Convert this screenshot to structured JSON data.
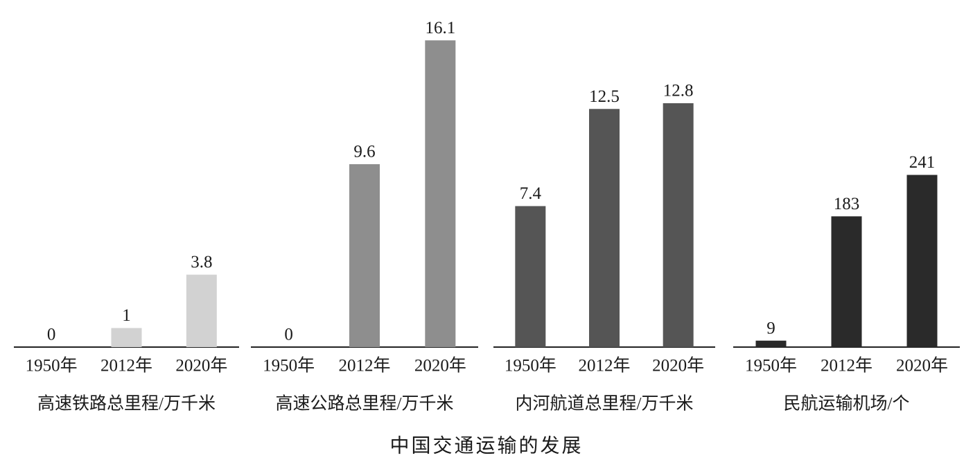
{
  "title": "中国交通运输的发展",
  "chart_data": [
    {
      "type": "bar",
      "title": "高速铁路总里程/万千米",
      "categories": [
        "1950年",
        "2012年",
        "2020年"
      ],
      "values": [
        0,
        1,
        3.8
      ],
      "color": "#d2d2d2",
      "ylim": [
        0,
        18
      ]
    },
    {
      "type": "bar",
      "title": "高速公路总里程/万千米",
      "categories": [
        "1950年",
        "2012年",
        "2020年"
      ],
      "values": [
        0,
        9.6,
        16.1
      ],
      "color": "#8e8e8e",
      "ylim": [
        0,
        18
      ]
    },
    {
      "type": "bar",
      "title": "内河航道总里程/万千米",
      "categories": [
        "1950年",
        "2012年",
        "2020年"
      ],
      "values": [
        7.4,
        12.5,
        12.8
      ],
      "color": "#555555",
      "ylim": [
        0,
        18
      ]
    },
    {
      "type": "bar",
      "title": "民航运输机场/个",
      "categories": [
        "1950年",
        "2012年",
        "2020年"
      ],
      "values": [
        9,
        183,
        241
      ],
      "color": "#2a2a2a",
      "ylim": [
        0,
        480
      ]
    }
  ]
}
